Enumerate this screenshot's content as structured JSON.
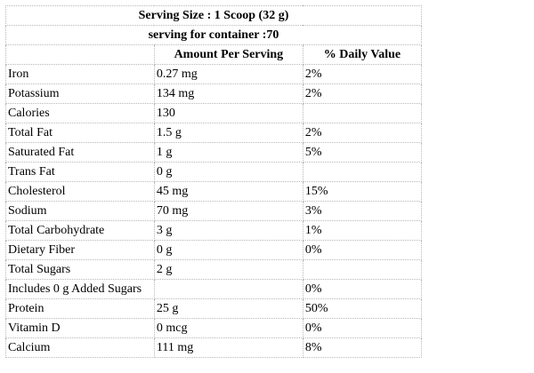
{
  "label": {
    "serving_size": "Serving Size : 1 Scoop (32 g)",
    "servings_per_container": "serving for container :70",
    "columns": {
      "nutrient": "",
      "amount": "Amount Per Serving",
      "daily_value": "% Daily Value"
    },
    "rows": [
      {
        "name": "Iron",
        "amount": "0.27 mg",
        "dv": "2%"
      },
      {
        "name": "Potassium",
        "amount": "134 mg",
        "dv": "2%"
      },
      {
        "name": "Calories",
        "amount": "130",
        "dv": ""
      },
      {
        "name": "Total Fat",
        "amount": "1.5 g",
        "dv": "2%"
      },
      {
        "name": "Saturated Fat",
        "amount": "1 g",
        "dv": "5%"
      },
      {
        "name": "Trans Fat",
        "amount": "0 g",
        "dv": ""
      },
      {
        "name": "Cholesterol",
        "amount": "45 mg",
        "dv": "15%"
      },
      {
        "name": "Sodium",
        "amount": "70 mg",
        "dv": "3%"
      },
      {
        "name": "Total Carbohydrate",
        "amount": "3 g",
        "dv": "1%"
      },
      {
        "name": "Dietary Fiber",
        "amount": "0 g",
        "dv": "0%"
      },
      {
        "name": "Total Sugars",
        "amount": "2 g",
        "dv": ""
      },
      {
        "name": "Includes 0 g Added Sugars",
        "amount": "",
        "dv": "0%"
      },
      {
        "name": "Protein",
        "amount": "25 g",
        "dv": "50%"
      },
      {
        "name": "Vitamin D",
        "amount": "0 mcg",
        "dv": "0%"
      },
      {
        "name": "Calcium",
        "amount": "111 mg",
        "dv": "8%"
      }
    ]
  }
}
